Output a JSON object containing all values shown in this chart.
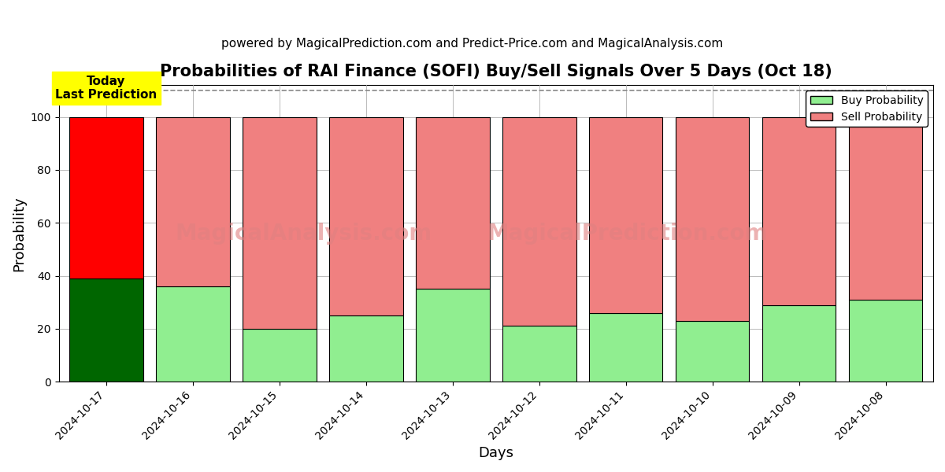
{
  "title": "Probabilities of RAI Finance (SOFI) Buy/Sell Signals Over 5 Days (Oct 18)",
  "subtitle": "powered by MagicalPrediction.com and Predict-Price.com and MagicalAnalysis.com",
  "xlabel": "Days",
  "ylabel": "Probability",
  "dates": [
    "2024-10-17",
    "2024-10-16",
    "2024-10-15",
    "2024-10-14",
    "2024-10-13",
    "2024-10-12",
    "2024-10-11",
    "2024-10-10",
    "2024-10-09",
    "2024-10-08"
  ],
  "buy_values": [
    39,
    36,
    20,
    25,
    35,
    21,
    26,
    23,
    29,
    31
  ],
  "sell_values": [
    61,
    64,
    80,
    75,
    65,
    79,
    74,
    77,
    71,
    69
  ],
  "today_buy_color": "#006600",
  "today_sell_color": "#ff0000",
  "buy_color": "#90ee90",
  "sell_color": "#f08080",
  "bar_edge_color": "#000000",
  "ylim": [
    0,
    112
  ],
  "dashed_line_y": 110,
  "today_annotation": "Today\nLast Prediction",
  "annotation_bg_color": "#ffff00",
  "legend_buy_label": "Buy Probability",
  "legend_sell_label": "Sell Probability",
  "watermark_texts": [
    "MagicalAnalysis.com",
    "MagicalPrediction.com"
  ],
  "watermark_color": "#e08080",
  "grid_color": "#aaaaaa",
  "title_fontsize": 15,
  "subtitle_fontsize": 11,
  "axis_label_fontsize": 13,
  "tick_fontsize": 10,
  "bar_width": 0.85
}
